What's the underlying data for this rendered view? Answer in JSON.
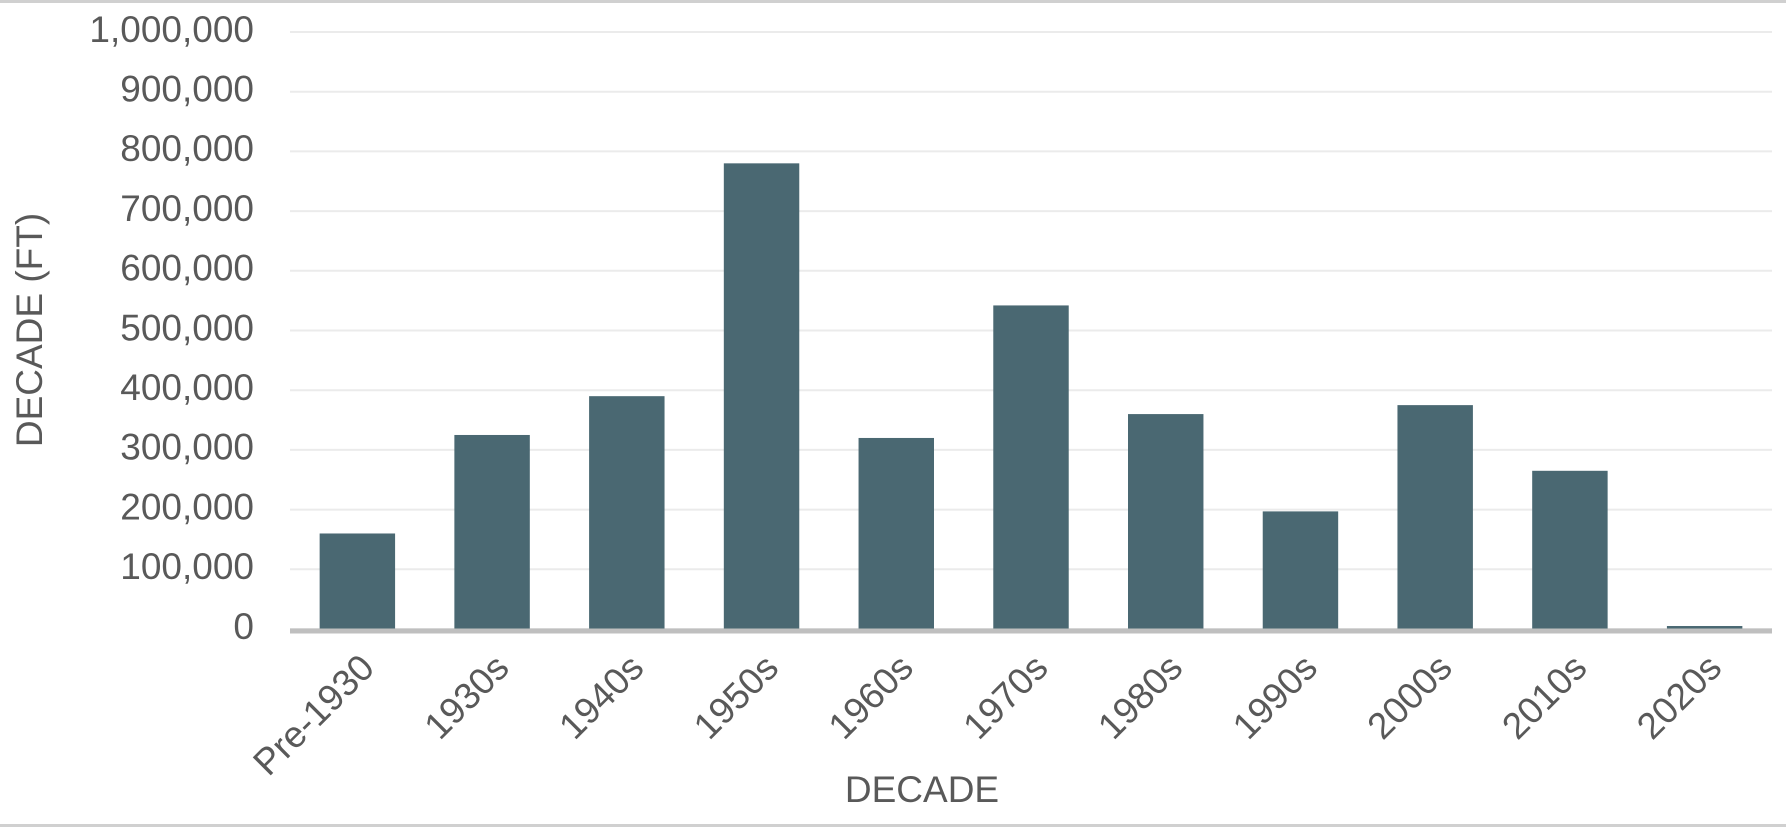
{
  "chart_data": {
    "type": "bar",
    "x_label": "DECADE",
    "y_label": "DECADE (FT)",
    "categories": [
      "Pre-1930",
      "1930s",
      "1940s",
      "1950s",
      "1960s",
      "1970s",
      "1980s",
      "1990s",
      "2000s",
      "2010s",
      "2020s"
    ],
    "values": [
      160000,
      325000,
      390000,
      780000,
      320000,
      542000,
      360000,
      197000,
      375000,
      265000,
      5000
    ],
    "color": "#4a6872",
    "ylim": [
      0,
      1000000
    ],
    "yticks": [
      0,
      {
        "value": 100000,
        "label": "100,000"
      },
      {
        "value": 200000,
        "label": "200,000"
      },
      {
        "value": 300000,
        "label": "300,000"
      },
      {
        "value": 400000,
        "label": "400,000"
      },
      {
        "value": 500000,
        "label": "500,000"
      },
      {
        "value": 600000,
        "label": "600,000"
      },
      {
        "value": 700000,
        "label": "700,000"
      },
      {
        "value": 800000,
        "label": "800,000"
      },
      {
        "value": 900000,
        "label": "900,000"
      },
      {
        "value": 1000000,
        "label": "1,000,000"
      }
    ],
    "grid": true
  }
}
